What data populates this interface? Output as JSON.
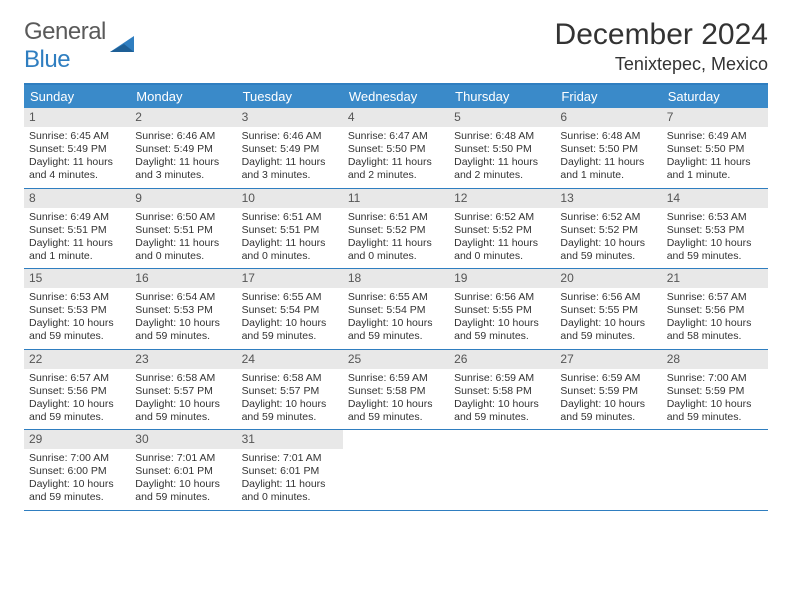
{
  "logo": {
    "word1": "General",
    "word2": "Blue"
  },
  "title": "December 2024",
  "location": "Tenixtepec, Mexico",
  "colors": {
    "header_bg": "#3a8ac9",
    "header_text": "#ffffff",
    "border": "#2f7ec0",
    "daynum_bg": "#e8e8e8",
    "text": "#333333"
  },
  "day_names": [
    "Sunday",
    "Monday",
    "Tuesday",
    "Wednesday",
    "Thursday",
    "Friday",
    "Saturday"
  ],
  "weeks": [
    [
      {
        "n": "1",
        "sr": "Sunrise: 6:45 AM",
        "ss": "Sunset: 5:49 PM",
        "d1": "Daylight: 11 hours",
        "d2": "and 4 minutes."
      },
      {
        "n": "2",
        "sr": "Sunrise: 6:46 AM",
        "ss": "Sunset: 5:49 PM",
        "d1": "Daylight: 11 hours",
        "d2": "and 3 minutes."
      },
      {
        "n": "3",
        "sr": "Sunrise: 6:46 AM",
        "ss": "Sunset: 5:49 PM",
        "d1": "Daylight: 11 hours",
        "d2": "and 3 minutes."
      },
      {
        "n": "4",
        "sr": "Sunrise: 6:47 AM",
        "ss": "Sunset: 5:50 PM",
        "d1": "Daylight: 11 hours",
        "d2": "and 2 minutes."
      },
      {
        "n": "5",
        "sr": "Sunrise: 6:48 AM",
        "ss": "Sunset: 5:50 PM",
        "d1": "Daylight: 11 hours",
        "d2": "and 2 minutes."
      },
      {
        "n": "6",
        "sr": "Sunrise: 6:48 AM",
        "ss": "Sunset: 5:50 PM",
        "d1": "Daylight: 11 hours",
        "d2": "and 1 minute."
      },
      {
        "n": "7",
        "sr": "Sunrise: 6:49 AM",
        "ss": "Sunset: 5:50 PM",
        "d1": "Daylight: 11 hours",
        "d2": "and 1 minute."
      }
    ],
    [
      {
        "n": "8",
        "sr": "Sunrise: 6:49 AM",
        "ss": "Sunset: 5:51 PM",
        "d1": "Daylight: 11 hours",
        "d2": "and 1 minute."
      },
      {
        "n": "9",
        "sr": "Sunrise: 6:50 AM",
        "ss": "Sunset: 5:51 PM",
        "d1": "Daylight: 11 hours",
        "d2": "and 0 minutes."
      },
      {
        "n": "10",
        "sr": "Sunrise: 6:51 AM",
        "ss": "Sunset: 5:51 PM",
        "d1": "Daylight: 11 hours",
        "d2": "and 0 minutes."
      },
      {
        "n": "11",
        "sr": "Sunrise: 6:51 AM",
        "ss": "Sunset: 5:52 PM",
        "d1": "Daylight: 11 hours",
        "d2": "and 0 minutes."
      },
      {
        "n": "12",
        "sr": "Sunrise: 6:52 AM",
        "ss": "Sunset: 5:52 PM",
        "d1": "Daylight: 11 hours",
        "d2": "and 0 minutes."
      },
      {
        "n": "13",
        "sr": "Sunrise: 6:52 AM",
        "ss": "Sunset: 5:52 PM",
        "d1": "Daylight: 10 hours",
        "d2": "and 59 minutes."
      },
      {
        "n": "14",
        "sr": "Sunrise: 6:53 AM",
        "ss": "Sunset: 5:53 PM",
        "d1": "Daylight: 10 hours",
        "d2": "and 59 minutes."
      }
    ],
    [
      {
        "n": "15",
        "sr": "Sunrise: 6:53 AM",
        "ss": "Sunset: 5:53 PM",
        "d1": "Daylight: 10 hours",
        "d2": "and 59 minutes."
      },
      {
        "n": "16",
        "sr": "Sunrise: 6:54 AM",
        "ss": "Sunset: 5:53 PM",
        "d1": "Daylight: 10 hours",
        "d2": "and 59 minutes."
      },
      {
        "n": "17",
        "sr": "Sunrise: 6:55 AM",
        "ss": "Sunset: 5:54 PM",
        "d1": "Daylight: 10 hours",
        "d2": "and 59 minutes."
      },
      {
        "n": "18",
        "sr": "Sunrise: 6:55 AM",
        "ss": "Sunset: 5:54 PM",
        "d1": "Daylight: 10 hours",
        "d2": "and 59 minutes."
      },
      {
        "n": "19",
        "sr": "Sunrise: 6:56 AM",
        "ss": "Sunset: 5:55 PM",
        "d1": "Daylight: 10 hours",
        "d2": "and 59 minutes."
      },
      {
        "n": "20",
        "sr": "Sunrise: 6:56 AM",
        "ss": "Sunset: 5:55 PM",
        "d1": "Daylight: 10 hours",
        "d2": "and 59 minutes."
      },
      {
        "n": "21",
        "sr": "Sunrise: 6:57 AM",
        "ss": "Sunset: 5:56 PM",
        "d1": "Daylight: 10 hours",
        "d2": "and 58 minutes."
      }
    ],
    [
      {
        "n": "22",
        "sr": "Sunrise: 6:57 AM",
        "ss": "Sunset: 5:56 PM",
        "d1": "Daylight: 10 hours",
        "d2": "and 59 minutes."
      },
      {
        "n": "23",
        "sr": "Sunrise: 6:58 AM",
        "ss": "Sunset: 5:57 PM",
        "d1": "Daylight: 10 hours",
        "d2": "and 59 minutes."
      },
      {
        "n": "24",
        "sr": "Sunrise: 6:58 AM",
        "ss": "Sunset: 5:57 PM",
        "d1": "Daylight: 10 hours",
        "d2": "and 59 minutes."
      },
      {
        "n": "25",
        "sr": "Sunrise: 6:59 AM",
        "ss": "Sunset: 5:58 PM",
        "d1": "Daylight: 10 hours",
        "d2": "and 59 minutes."
      },
      {
        "n": "26",
        "sr": "Sunrise: 6:59 AM",
        "ss": "Sunset: 5:58 PM",
        "d1": "Daylight: 10 hours",
        "d2": "and 59 minutes."
      },
      {
        "n": "27",
        "sr": "Sunrise: 6:59 AM",
        "ss": "Sunset: 5:59 PM",
        "d1": "Daylight: 10 hours",
        "d2": "and 59 minutes."
      },
      {
        "n": "28",
        "sr": "Sunrise: 7:00 AM",
        "ss": "Sunset: 5:59 PM",
        "d1": "Daylight: 10 hours",
        "d2": "and 59 minutes."
      }
    ],
    [
      {
        "n": "29",
        "sr": "Sunrise: 7:00 AM",
        "ss": "Sunset: 6:00 PM",
        "d1": "Daylight: 10 hours",
        "d2": "and 59 minutes."
      },
      {
        "n": "30",
        "sr": "Sunrise: 7:01 AM",
        "ss": "Sunset: 6:01 PM",
        "d1": "Daylight: 10 hours",
        "d2": "and 59 minutes."
      },
      {
        "n": "31",
        "sr": "Sunrise: 7:01 AM",
        "ss": "Sunset: 6:01 PM",
        "d1": "Daylight: 11 hours",
        "d2": "and 0 minutes."
      },
      {
        "empty": true
      },
      {
        "empty": true
      },
      {
        "empty": true
      },
      {
        "empty": true
      }
    ]
  ]
}
